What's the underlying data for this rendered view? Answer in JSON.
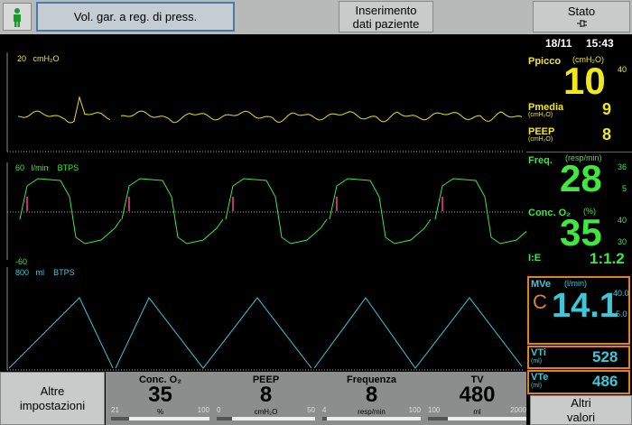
{
  "top_bar": {
    "mode": "Vol. gar. a reg. di press.",
    "patient_button": [
      "Inserimento",
      "dati paziente"
    ],
    "status_button": "Stato"
  },
  "clock": {
    "date": "18/11",
    "time": "15:43"
  },
  "waveforms": [
    {
      "scale": "20",
      "unit": "cmH₂O"
    },
    {
      "scale": "60",
      "unit": "l/min",
      "tag": "BTPS",
      "min": "-60"
    },
    {
      "scale": "800",
      "unit": "ml",
      "tag": "BTPS"
    }
  ],
  "measurements": {
    "ppicco": {
      "label": "Ppicco",
      "unit": "(cmH₂O)",
      "value": "10",
      "high": "40"
    },
    "pmedia": {
      "label": "Pmedia",
      "unit": "(cmH₂O)",
      "value": "9"
    },
    "peep": {
      "label": "PEEP",
      "unit": "(cmH₂O)",
      "value": "8"
    },
    "freq": {
      "label": "Freq.",
      "unit": "(resp/min)",
      "value": "28",
      "high": "36",
      "low": "5"
    },
    "o2": {
      "label": "Conc. O₂",
      "unit": "(%)",
      "value": "35",
      "high": "40",
      "low": "30"
    },
    "ie": {
      "label": "I:E",
      "value": "1:1.2"
    },
    "mve": {
      "label": "MVe",
      "unit": "(l/min)",
      "flag": "C",
      "value": "14.1",
      "high": "40.0",
      "low": "5.0"
    },
    "vti": {
      "label": "VTi",
      "unit": "(ml)",
      "value": "528"
    },
    "vte": {
      "label": "VTe",
      "unit": "(ml)",
      "value": "486"
    }
  },
  "bottom_bar": {
    "left_button": [
      "Altre",
      "impostazioni"
    ],
    "right_button": [
      "Altri",
      "valori"
    ],
    "settings": [
      {
        "label": "Conc. O₂",
        "value": "35",
        "unit": "%",
        "min": "21",
        "max": "100"
      },
      {
        "label": "PEEP",
        "value": "8",
        "unit": "cmH₂O",
        "min": "0",
        "max": "50"
      },
      {
        "label": "Frequenza",
        "value": "8",
        "unit": "resp/min",
        "min": "4",
        "max": "100"
      },
      {
        "label": "TV",
        "value": "480",
        "unit": "ml",
        "min": "100",
        "max": "2000"
      }
    ]
  }
}
